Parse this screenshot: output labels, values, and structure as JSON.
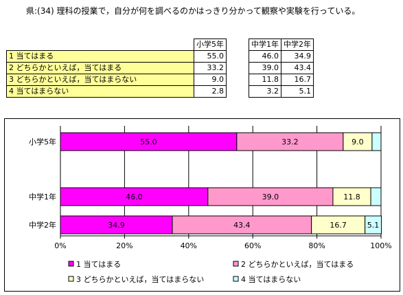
{
  "question": "県:(34) 理科の授業で，自分が何を調べるのかはっきり分かって観察や実験を行っている。",
  "table": {
    "col_headers": [
      "小学5年",
      "中学1年",
      "中学2年"
    ],
    "rows": [
      {
        "label": "1  当てはまる",
        "values": [
          "55.0",
          "46.0",
          "34.9"
        ]
      },
      {
        "label": "2  どちらかといえば，当てはまる",
        "values": [
          "33.2",
          "39.0",
          "43.4"
        ]
      },
      {
        "label": "3  どちらかといえば，当てはまらない",
        "values": [
          "9.0",
          "11.8",
          "16.7"
        ]
      },
      {
        "label": "4  当てはまらない",
        "values": [
          "2.8",
          "3.2",
          "5.1"
        ]
      }
    ]
  },
  "chart_data": {
    "type": "bar",
    "orientation": "horizontal",
    "stacked": true,
    "categories": [
      "小学5年",
      "中学1年",
      "中学2年"
    ],
    "series": [
      {
        "name": "1  当てはまる",
        "values": [
          55.0,
          46.0,
          34.9
        ],
        "labels": [
          "55.0",
          "46.0",
          "34.9"
        ],
        "color": "#ff00ff"
      },
      {
        "name": "2  どちらかといえば，当てはまる",
        "values": [
          33.2,
          39.0,
          43.4
        ],
        "labels": [
          "33.2",
          "39.0",
          "43.4"
        ],
        "color": "#ff99cc"
      },
      {
        "name": "3  どちらかといえば，当てはまらない",
        "values": [
          9.0,
          11.8,
          16.7
        ],
        "labels": [
          "9.0",
          "11.8",
          "16.7"
        ],
        "color": "#ffffcc"
      },
      {
        "name": "4  当てはまらない",
        "values": [
          2.8,
          3.2,
          5.1
        ],
        "labels": [
          "",
          "",
          "5.1"
        ],
        "color": "#ccffff"
      }
    ],
    "xlim": [
      0,
      100
    ],
    "xticks": [
      "0%",
      "20%",
      "40%",
      "60%",
      "80%",
      "100%"
    ],
    "grid": true,
    "legend": "bottom"
  },
  "colors": {
    "table_label_bg": "#ffff99",
    "gridline": "#000000",
    "bar_outline": "#000000"
  }
}
